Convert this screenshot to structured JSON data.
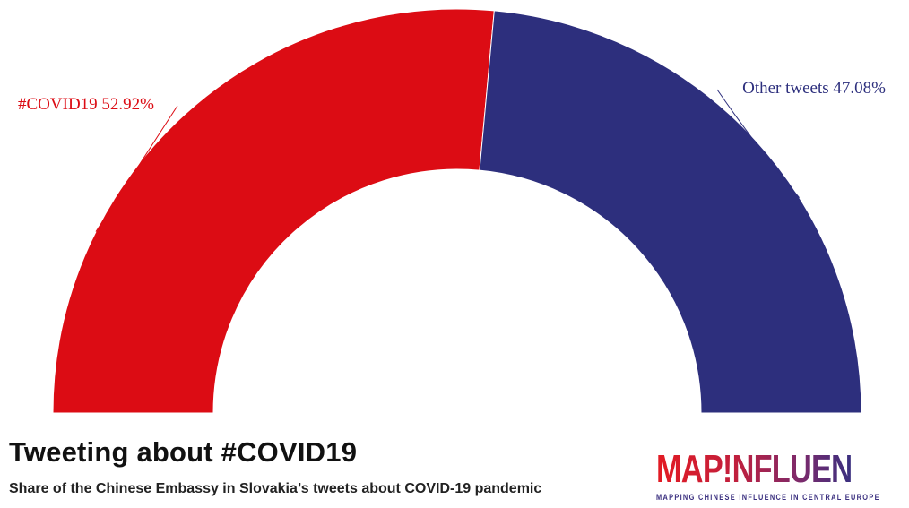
{
  "chart_data": {
    "type": "pie",
    "variant": "semi-donut",
    "slices": [
      {
        "label": "#COVID19",
        "value": 52.92,
        "value_text": "52.92%",
        "color": "#dc0c14"
      },
      {
        "label": "Other tweets",
        "value": 47.08,
        "value_text": "47.08%",
        "color": "#2d2f7d"
      }
    ]
  },
  "title": "Tweeting about #COVID19",
  "subtitle": "Share of the Chinese Embassy in Slovakia’s tweets about COVID-19 pandemic",
  "logo": {
    "main": "MAP!NFLUENCE",
    "tagline": "MAPPING CHINESE INFLUENCE IN CENTRAL EUROPE"
  }
}
